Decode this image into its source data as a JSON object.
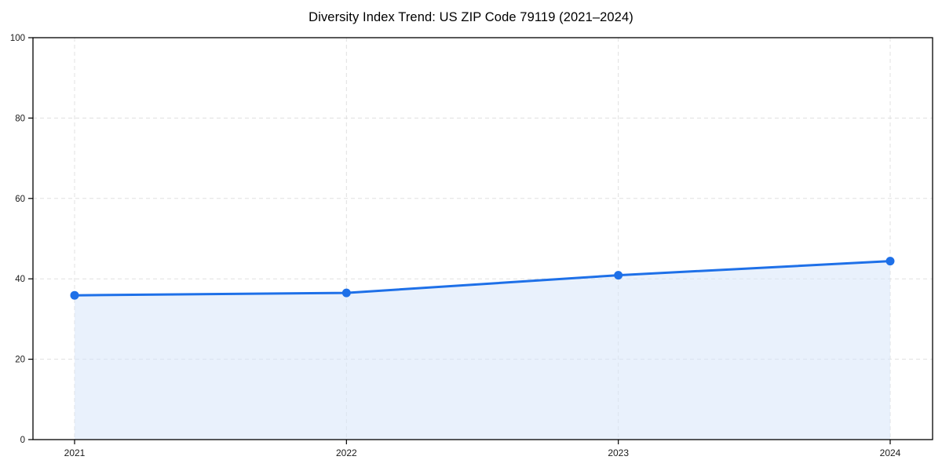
{
  "chart_data": {
    "type": "area",
    "title": "Diversity Index Trend: US ZIP Code 79119 (2021–2024)",
    "categories": [
      "2021",
      "2022",
      "2023",
      "2024"
    ],
    "series": [
      {
        "name": "Diversity Index",
        "values": [
          35.9,
          36.5,
          40.9,
          44.4
        ]
      }
    ],
    "xlabel": "",
    "ylabel": "",
    "ylim": [
      0,
      100
    ],
    "yticks": [
      0,
      20,
      40,
      60,
      80,
      100
    ],
    "grid": true,
    "grid_style": "dashed",
    "legend_position": "none",
    "line_color": "#1e70e8",
    "marker_color": "#1e70e8",
    "fill_color": "#d7e6fa",
    "grid_color": "#e0e0e0",
    "axis_color": "#000000",
    "tick_label_color": "#1a1a1a"
  }
}
